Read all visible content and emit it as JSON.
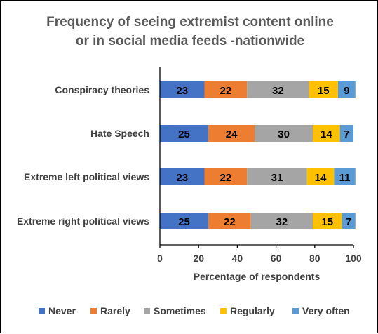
{
  "chart_data": {
    "type": "bar",
    "orientation": "horizontal",
    "stacked": true,
    "title": "Frequency of seeing extremist content online or in social media feeds -nationwide",
    "title_lines": [
      "Frequency of seeing extremist content online",
      "or in social media feeds -nationwide"
    ],
    "xlabel": "Percentage of respondents",
    "ylabel": "",
    "xlim": [
      0,
      100
    ],
    "xticks": [
      "0",
      "20",
      "40",
      "60",
      "80",
      "100"
    ],
    "grid": false,
    "legend_position": "bottom",
    "categories": [
      "Conspiracy theories",
      "Hate Speech",
      "Extreme left political views",
      "Extreme right political views"
    ],
    "series": [
      {
        "name": "Never",
        "color": "#4472C4",
        "label_color": "#000000",
        "values": [
          23,
          25,
          23,
          25
        ]
      },
      {
        "name": "Rarely",
        "color": "#ED7D31",
        "label_color": "#000000",
        "values": [
          22,
          24,
          22,
          22
        ]
      },
      {
        "name": "Sometimes",
        "color": "#A5A5A5",
        "label_color": "#000000",
        "values": [
          32,
          30,
          31,
          32
        ]
      },
      {
        "name": "Regularly",
        "color": "#FFC000",
        "label_color": "#000000",
        "values": [
          15,
          14,
          14,
          15
        ]
      },
      {
        "name": "Very often",
        "color": "#5B9BD5",
        "label_color": "#000000",
        "values": [
          9,
          7,
          11,
          7
        ]
      }
    ]
  }
}
